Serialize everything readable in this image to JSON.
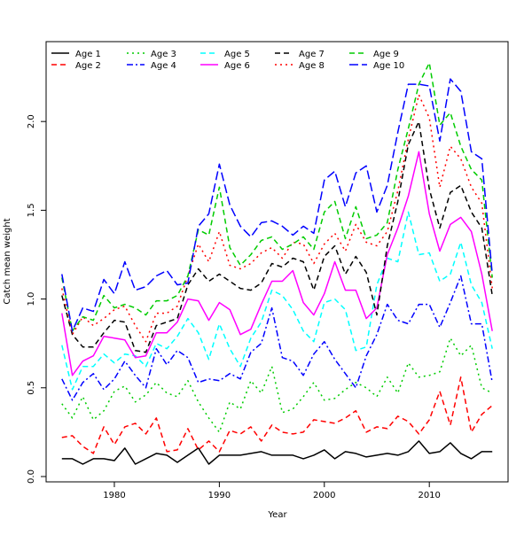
{
  "chart_data": {
    "type": "line",
    "title": "",
    "xlabel": "Year",
    "ylabel": "Catch mean weight",
    "xlim": [
      1973.5,
      2017.5
    ],
    "ylim": [
      -0.03,
      2.45
    ],
    "x_ticks": [
      1980,
      1990,
      2000,
      2010
    ],
    "y_ticks": [
      0.0,
      0.5,
      1.0,
      1.5,
      2.0
    ],
    "x_tick_labels": [
      "1980",
      "1990",
      "2000",
      "2010"
    ],
    "y_tick_labels": [
      "0.0",
      "0.5",
      "1.0",
      "1.5",
      "2.0"
    ],
    "legend_position": "top-left",
    "x": [
      1975,
      1976,
      1977,
      1978,
      1979,
      1980,
      1981,
      1982,
      1983,
      1984,
      1985,
      1986,
      1987,
      1988,
      1989,
      1990,
      1991,
      1992,
      1993,
      1994,
      1995,
      1996,
      1997,
      1998,
      1999,
      2000,
      2001,
      2002,
      2003,
      2004,
      2005,
      2006,
      2007,
      2008,
      2009,
      2010,
      2011,
      2012,
      2013,
      2014,
      2015,
      2016
    ],
    "series": [
      {
        "name": "Age 1",
        "color": "#000000",
        "dash": "solid",
        "values": [
          0.1,
          0.1,
          0.07,
          0.1,
          0.1,
          0.09,
          0.16,
          0.07,
          0.1,
          0.13,
          0.12,
          0.08,
          0.12,
          0.16,
          0.07,
          0.12,
          0.12,
          0.12,
          0.13,
          0.14,
          0.12,
          0.12,
          0.12,
          0.1,
          0.12,
          0.15,
          0.1,
          0.14,
          0.13,
          0.11,
          0.12,
          0.13,
          0.12,
          0.14,
          0.2,
          0.13,
          0.14,
          0.19,
          0.13,
          0.1,
          0.14,
          0.14
        ]
      },
      {
        "name": "Age 2",
        "color": "#ff0000",
        "dash": "dashed",
        "values": [
          0.22,
          0.23,
          0.17,
          0.13,
          0.28,
          0.18,
          0.28,
          0.3,
          0.24,
          0.33,
          0.14,
          0.15,
          0.27,
          0.15,
          0.2,
          0.14,
          0.26,
          0.24,
          0.28,
          0.2,
          0.29,
          0.25,
          0.24,
          0.25,
          0.32,
          0.31,
          0.3,
          0.33,
          0.37,
          0.25,
          0.28,
          0.27,
          0.34,
          0.31,
          0.24,
          0.32,
          0.48,
          0.29,
          0.56,
          0.25,
          0.35,
          0.4
        ]
      },
      {
        "name": "Age 3",
        "color": "#00cc00",
        "dash": "dotted",
        "values": [
          0.41,
          0.33,
          0.45,
          0.32,
          0.37,
          0.48,
          0.51,
          0.42,
          0.46,
          0.53,
          0.47,
          0.45,
          0.54,
          0.42,
          0.33,
          0.25,
          0.42,
          0.38,
          0.54,
          0.47,
          0.62,
          0.36,
          0.38,
          0.45,
          0.53,
          0.43,
          0.44,
          0.49,
          0.53,
          0.5,
          0.45,
          0.56,
          0.47,
          0.64,
          0.56,
          0.57,
          0.59,
          0.78,
          0.68,
          0.74,
          0.5,
          0.47
        ]
      },
      {
        "name": "Age 4",
        "color": "#0000ff",
        "dash": "dashdot",
        "values": [
          0.55,
          0.43,
          0.53,
          0.58,
          0.49,
          0.55,
          0.65,
          0.57,
          0.5,
          0.72,
          0.63,
          0.71,
          0.67,
          0.53,
          0.55,
          0.54,
          0.58,
          0.55,
          0.7,
          0.75,
          0.95,
          0.67,
          0.65,
          0.57,
          0.69,
          0.76,
          0.66,
          0.58,
          0.5,
          0.68,
          0.8,
          0.97,
          0.88,
          0.86,
          0.97,
          0.97,
          0.84,
          0.98,
          1.13,
          0.86,
          0.86,
          0.53
        ]
      },
      {
        "name": "Age 5",
        "color": "#00ffff",
        "dash": "dashed",
        "values": [
          0.74,
          0.49,
          0.62,
          0.62,
          0.69,
          0.64,
          0.69,
          0.68,
          0.62,
          0.75,
          0.72,
          0.79,
          0.89,
          0.81,
          0.66,
          0.86,
          0.72,
          0.62,
          0.78,
          0.87,
          1.05,
          1.02,
          0.94,
          0.82,
          0.76,
          0.98,
          1.0,
          0.94,
          0.71,
          0.73,
          1.08,
          1.23,
          1.21,
          1.49,
          1.25,
          1.26,
          1.1,
          1.14,
          1.32,
          1.08,
          0.98,
          0.72
        ]
      },
      {
        "name": "Age 6",
        "color": "#ff00ff",
        "dash": "solid",
        "values": [
          0.92,
          0.57,
          0.65,
          0.68,
          0.79,
          0.78,
          0.77,
          0.67,
          0.68,
          0.81,
          0.81,
          0.87,
          1.0,
          0.99,
          0.88,
          0.98,
          0.94,
          0.8,
          0.83,
          0.97,
          1.1,
          1.1,
          1.16,
          0.98,
          0.91,
          1.03,
          1.21,
          1.05,
          1.05,
          0.89,
          0.95,
          1.25,
          1.4,
          1.58,
          1.83,
          1.48,
          1.27,
          1.42,
          1.46,
          1.38,
          1.14,
          0.82
        ]
      },
      {
        "name": "Age 7",
        "color": "#000000",
        "dash": "dashed",
        "values": [
          1.02,
          0.8,
          0.73,
          0.73,
          0.81,
          0.88,
          0.87,
          0.71,
          0.7,
          0.85,
          0.87,
          0.89,
          1.08,
          1.17,
          1.1,
          1.14,
          1.1,
          1.06,
          1.05,
          1.09,
          1.2,
          1.18,
          1.23,
          1.21,
          1.05,
          1.24,
          1.3,
          1.14,
          1.24,
          1.15,
          0.91,
          1.3,
          1.55,
          1.87,
          2.0,
          1.62,
          1.4,
          1.6,
          1.64,
          1.49,
          1.4,
          1.02
        ]
      },
      {
        "name": "Age 8",
        "color": "#ff0000",
        "dash": "dotted",
        "values": [
          1.06,
          0.8,
          0.9,
          0.85,
          0.89,
          0.94,
          0.96,
          0.85,
          0.76,
          0.92,
          0.92,
          0.96,
          1.13,
          1.31,
          1.21,
          1.38,
          1.19,
          1.17,
          1.2,
          1.26,
          1.29,
          1.23,
          1.32,
          1.31,
          1.2,
          1.31,
          1.37,
          1.27,
          1.42,
          1.32,
          1.3,
          1.38,
          1.61,
          1.9,
          2.15,
          2.02,
          1.63,
          1.86,
          1.79,
          1.63,
          1.54,
          1.06
        ]
      },
      {
        "name": "Age 9",
        "color": "#00cc00",
        "dash": "dashed",
        "values": [
          1.12,
          0.82,
          0.9,
          0.88,
          1.02,
          0.95,
          0.97,
          0.95,
          0.91,
          0.99,
          0.99,
          1.02,
          1.13,
          1.39,
          1.36,
          1.63,
          1.29,
          1.19,
          1.25,
          1.33,
          1.35,
          1.28,
          1.31,
          1.35,
          1.28,
          1.49,
          1.55,
          1.34,
          1.52,
          1.34,
          1.36,
          1.43,
          1.73,
          1.96,
          2.21,
          2.33,
          1.98,
          2.05,
          1.86,
          1.73,
          1.67,
          1.12
        ]
      },
      {
        "name": "Age 10",
        "color": "#0000ff",
        "dash": "longdash",
        "values": [
          1.14,
          0.82,
          0.95,
          0.93,
          1.11,
          1.03,
          1.21,
          1.05,
          1.07,
          1.13,
          1.16,
          1.08,
          1.09,
          1.41,
          1.48,
          1.76,
          1.53,
          1.41,
          1.35,
          1.43,
          1.44,
          1.41,
          1.36,
          1.41,
          1.37,
          1.67,
          1.72,
          1.52,
          1.71,
          1.75,
          1.49,
          1.64,
          1.94,
          2.21,
          2.21,
          2.2,
          1.89,
          2.24,
          2.17,
          1.83,
          1.79,
          1.14
        ]
      }
    ]
  }
}
